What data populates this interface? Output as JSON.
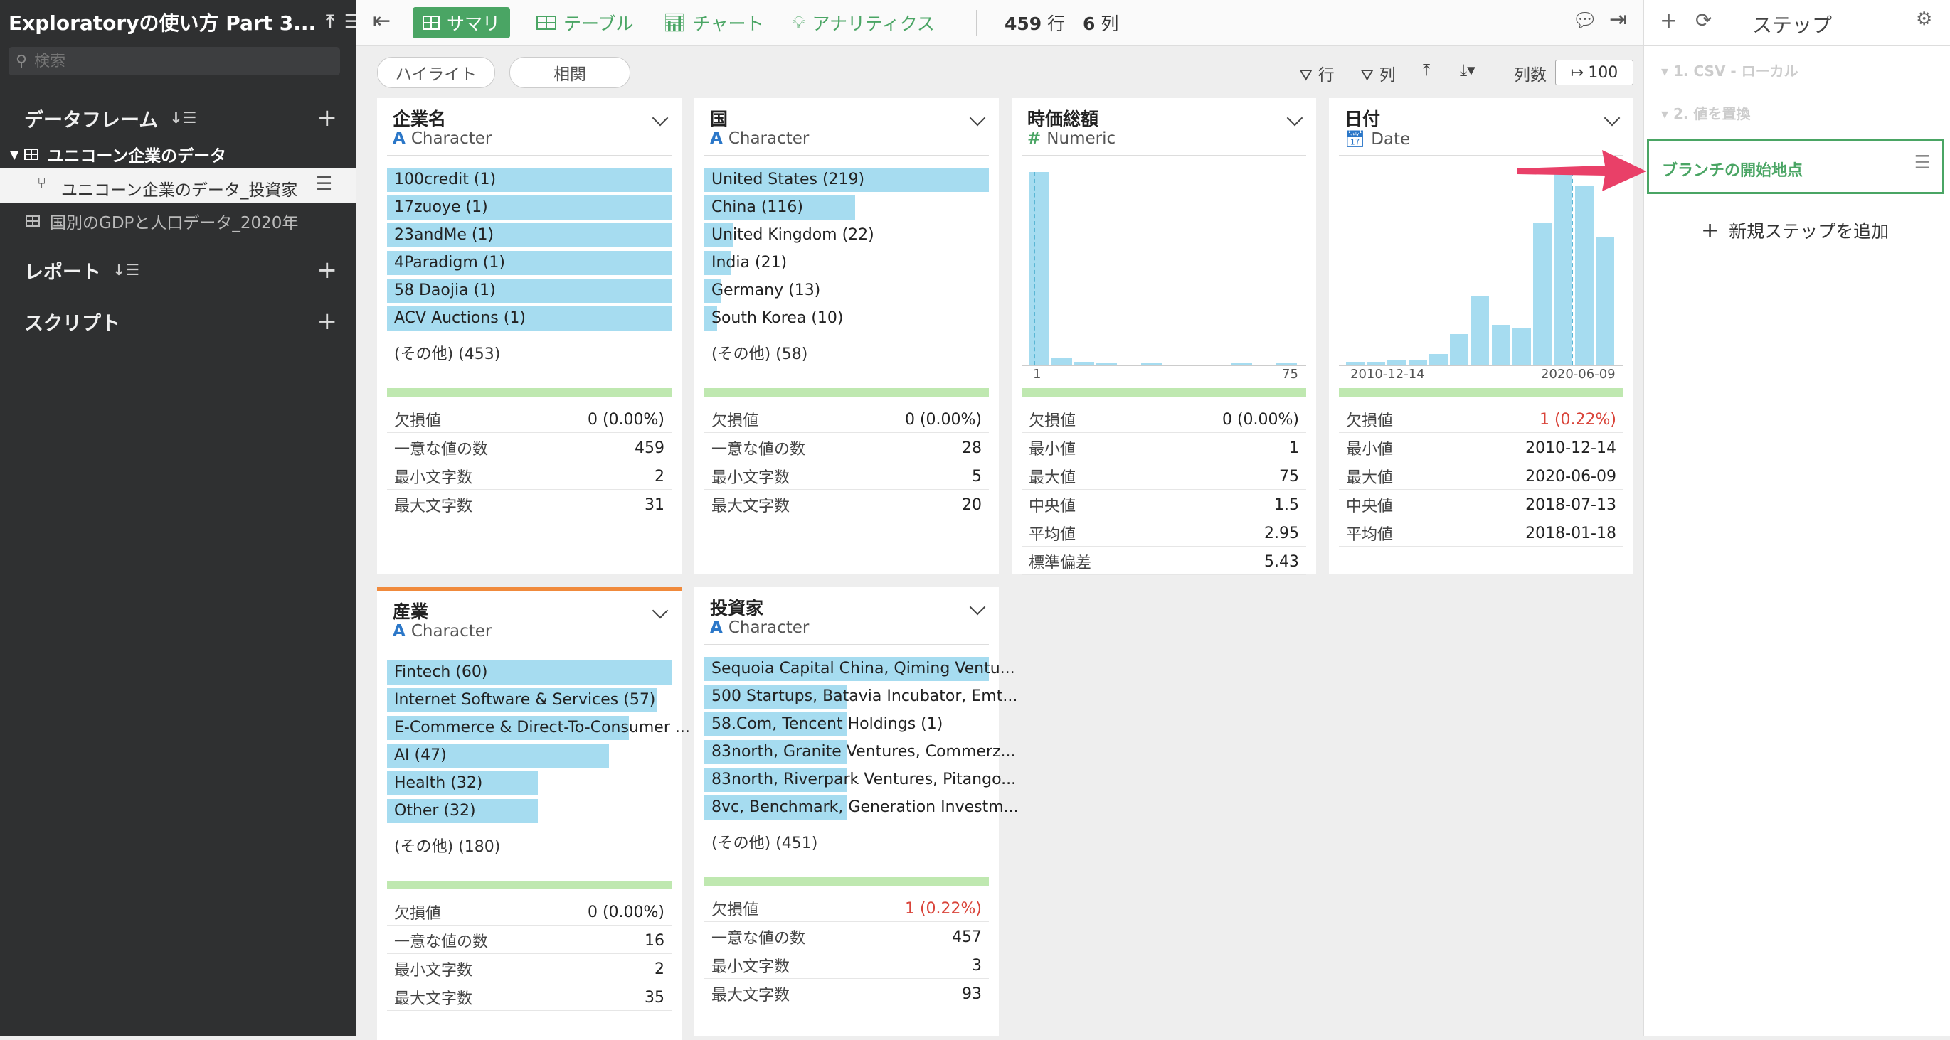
{
  "sidebar": {
    "title": "Exploratoryの使い方 Part 3...",
    "search_placeholder": "検索",
    "dataframes_label": "データフレーム",
    "dataframe_main": "ユニコーン企業のデータ",
    "dataframe_branch": "ユニコーン企業のデータ_投資家",
    "dataframe_other": "国別のGDPと人口データ_2020年",
    "reports_label": "レポート",
    "scripts_label": "スクリプト"
  },
  "toolbar": {
    "summary": "サマリ",
    "table": "テーブル",
    "chart": "チャート",
    "analytics": "アナリティクス",
    "rows": "459",
    "rows_unit": "行",
    "cols": "6",
    "cols_unit": "列"
  },
  "subbar": {
    "highlight": "ハイライト",
    "correlation": "相関",
    "filter_rows": "行",
    "filter_cols": "列",
    "col_count_label": "列数",
    "col_limit": "100"
  },
  "cards": {
    "company": {
      "name": "企業名",
      "type": "Character",
      "bars": [
        {
          "label": "100credit (1)",
          "frac": 1.0
        },
        {
          "label": "17zuoye (1)",
          "frac": 1.0
        },
        {
          "label": "23andMe (1)",
          "frac": 1.0
        },
        {
          "label": "4Paradigm (1)",
          "frac": 1.0
        },
        {
          "label": "58 Daojia (1)",
          "frac": 1.0
        },
        {
          "label": "ACV Auctions (1)",
          "frac": 1.0
        }
      ],
      "other": "(その他) (453)",
      "stats": [
        {
          "k": "欠損値",
          "v": "0 (0.00%)"
        },
        {
          "k": "一意な値の数",
          "v": "459"
        },
        {
          "k": "最小文字数",
          "v": "2"
        },
        {
          "k": "最大文字数",
          "v": "31"
        }
      ]
    },
    "country": {
      "name": "国",
      "type": "Character",
      "bars": [
        {
          "label": "United States (219)",
          "frac": 1.0
        },
        {
          "label": "China (116)",
          "frac": 0.53
        },
        {
          "label": "United Kingdom (22)",
          "frac": 0.1
        },
        {
          "label": "India (21)",
          "frac": 0.096
        },
        {
          "label": "Germany (13)",
          "frac": 0.06
        },
        {
          "label": "South Korea (10)",
          "frac": 0.046
        }
      ],
      "other": "(その他) (58)",
      "stats": [
        {
          "k": "欠損値",
          "v": "0 (0.00%)"
        },
        {
          "k": "一意な値の数",
          "v": "28"
        },
        {
          "k": "最小文字数",
          "v": "5"
        },
        {
          "k": "最大文字数",
          "v": "20"
        }
      ]
    },
    "valuation": {
      "name": "時価総額",
      "type": "Numeric",
      "axis_min": "1",
      "axis_max": "75",
      "hist": [
        1.0,
        0.04,
        0.02,
        0.005,
        0,
        0.005,
        0,
        0,
        0,
        0.005,
        0,
        0.005
      ],
      "stats": [
        {
          "k": "欠損値",
          "v": "0 (0.00%)"
        },
        {
          "k": "最小値",
          "v": "1"
        },
        {
          "k": "最大値",
          "v": "75"
        },
        {
          "k": "中央値",
          "v": "1.5"
        },
        {
          "k": "平均値",
          "v": "2.95"
        },
        {
          "k": "標準偏差",
          "v": "5.43"
        }
      ]
    },
    "date": {
      "name": "日付",
      "type": "Date",
      "axis_min": "2010-12-14",
      "axis_max": "2020-06-09",
      "hist": [
        0.02,
        0.02,
        0.03,
        0.03,
        0.06,
        0.16,
        0.36,
        0.21,
        0.19,
        0.74,
        1.0,
        0.93,
        0.66
      ],
      "stats": [
        {
          "k": "欠損値",
          "v": "1 (0.22%)",
          "red": true
        },
        {
          "k": "最小値",
          "v": "2010-12-14"
        },
        {
          "k": "最大値",
          "v": "2020-06-09"
        },
        {
          "k": "中央値",
          "v": "2018-07-13"
        },
        {
          "k": "平均値",
          "v": "2018-01-18"
        }
      ]
    },
    "industry": {
      "name": "産業",
      "type": "Character",
      "bars": [
        {
          "label": "Fintech (60)",
          "frac": 1.0
        },
        {
          "label": "Internet Software & Services (57)",
          "frac": 0.95
        },
        {
          "label": "E-Commerce & Direct-To-Consumer ...",
          "frac": 0.85
        },
        {
          "label": "AI (47)",
          "frac": 0.78
        },
        {
          "label": "Health (32)",
          "frac": 0.53
        },
        {
          "label": "Other (32)",
          "frac": 0.53
        }
      ],
      "other": "(その他) (180)",
      "stats": [
        {
          "k": "欠損値",
          "v": "0 (0.00%)"
        },
        {
          "k": "一意な値の数",
          "v": "16"
        },
        {
          "k": "最小文字数",
          "v": "2"
        },
        {
          "k": "最大文字数",
          "v": "35"
        }
      ]
    },
    "investor": {
      "name": "投資家",
      "type": "Character",
      "bars": [
        {
          "label": "Sequoia Capital China, Qiming Ventu...",
          "frac": 1.0
        },
        {
          "label": "500 Startups, Batavia Incubator, Emt...",
          "frac": 0.5
        },
        {
          "label": "58.Com, Tencent Holdings (1)",
          "frac": 0.5
        },
        {
          "label": "83north, Granite Ventures, Commerz...",
          "frac": 0.5
        },
        {
          "label": "83north, Riverpark Ventures, Pitango...",
          "frac": 0.5
        },
        {
          "label": "8vc, Benchmark, Generation Investm...",
          "frac": 0.5
        }
      ],
      "other": "(その他) (451)",
      "stats": [
        {
          "k": "欠損値",
          "v": "1 (0.22%)",
          "red": true
        },
        {
          "k": "一意な値の数",
          "v": "457"
        },
        {
          "k": "最小文字数",
          "v": "3"
        },
        {
          "k": "最大文字数",
          "v": "93"
        }
      ]
    }
  },
  "steps": {
    "title": "ステップ",
    "step1": "1. CSV - ローカル",
    "step2": "2. 値を置換",
    "branch_start": "ブランチの開始地点",
    "add_step": "新規ステップを追加"
  },
  "colors": {
    "accent": "#4aa564",
    "bar": "#a6dcf0",
    "annotation_arrow": "#e94068",
    "missing_red": "#d9443a"
  }
}
